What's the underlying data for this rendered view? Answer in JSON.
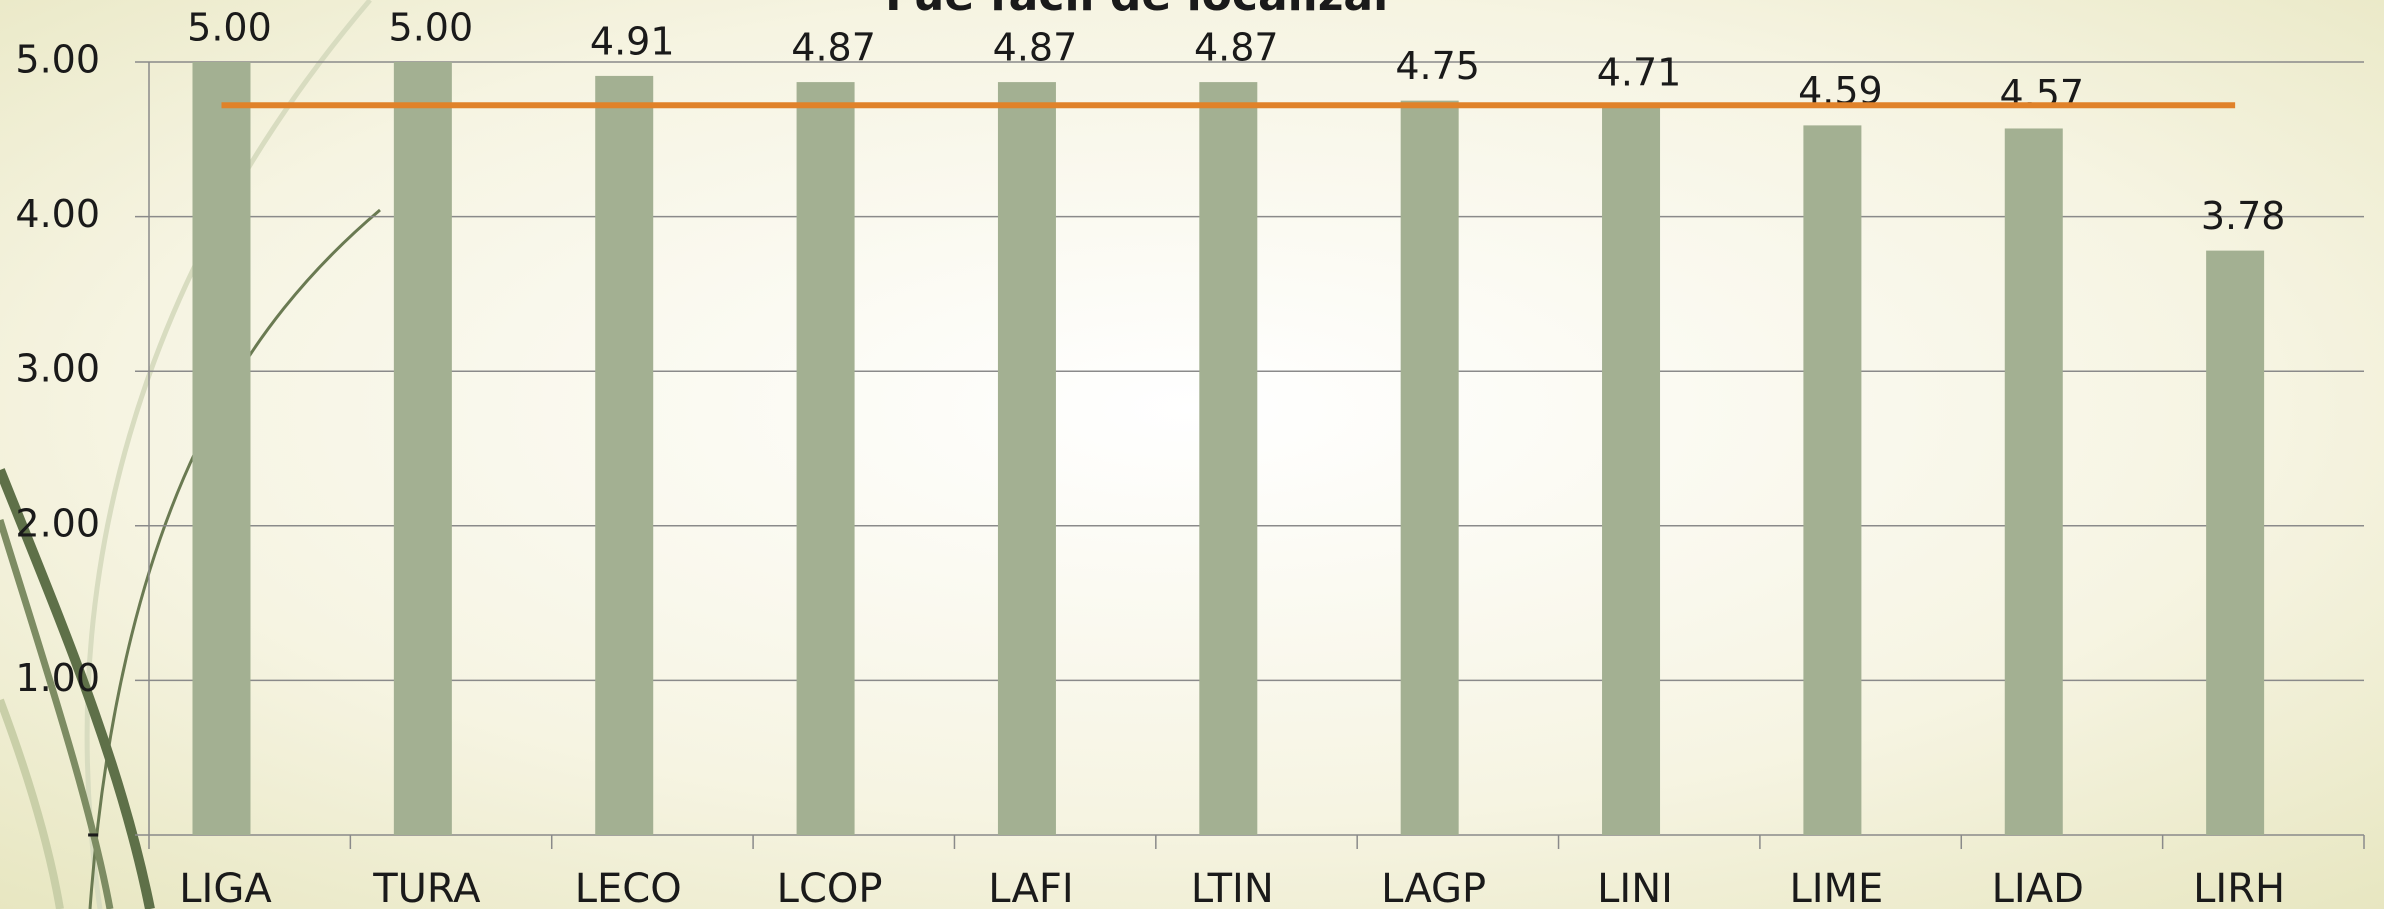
{
  "chart_data": {
    "type": "bar",
    "title": "Fue fácil de localizar",
    "categories": [
      "LIGA",
      "TURA",
      "LECO",
      "LCOP",
      "LAFI",
      "LTIN",
      "LAGP",
      "LINI",
      "LIME",
      "LIAD",
      "LIRH"
    ],
    "values": [
      5.0,
      5.0,
      4.91,
      4.87,
      4.87,
      4.87,
      4.75,
      4.71,
      4.59,
      4.57,
      3.78
    ],
    "value_labels": [
      "5.00",
      "5.00",
      "4.91",
      "4.87",
      "4.87",
      "4.87",
      "4.75",
      "4.71",
      "4.59",
      "4.57",
      "3.78"
    ],
    "color": "#a3b092",
    "average_line": {
      "value": 4.72,
      "color": "#e0822a"
    },
    "ylim": [
      0,
      5
    ],
    "yticks": [
      {
        "value": 0,
        "label": "-"
      },
      {
        "value": 1,
        "label": "1.00"
      },
      {
        "value": 2,
        "label": "2.00"
      },
      {
        "value": 3,
        "label": "3.00"
      },
      {
        "value": 4,
        "label": "4.00"
      },
      {
        "value": 5,
        "label": "5.00"
      }
    ],
    "grid": true
  }
}
